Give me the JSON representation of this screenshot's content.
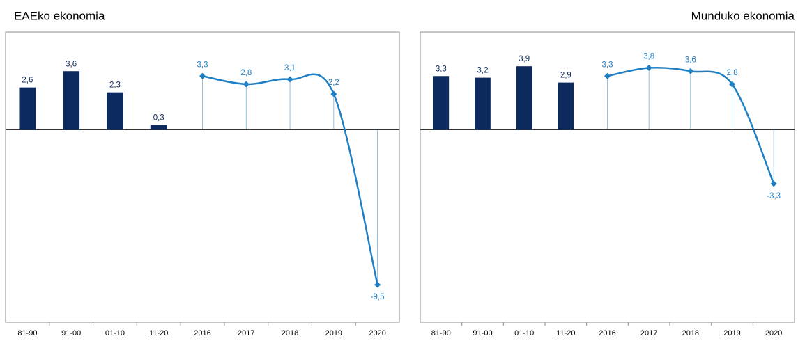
{
  "chart_data": [
    {
      "type": "combo",
      "title": "EAEko ekonomia",
      "title_align": "left",
      "categories": [
        "81-90",
        "91-00",
        "01-10",
        "11-20",
        "2016",
        "2017",
        "2018",
        "2019",
        "2020"
      ],
      "ylim": [
        -11.8,
        6
      ],
      "series": [
        {
          "type": "bar",
          "color": "#0d2a5e",
          "values": [
            2.6,
            3.6,
            2.3,
            0.3,
            null,
            null,
            null,
            null,
            null
          ],
          "value_labels": [
            "2,6",
            "3,6",
            "2,3",
            "0,3",
            null,
            null,
            null,
            null,
            null
          ]
        },
        {
          "type": "line",
          "color": "#1f7fc4",
          "values": [
            null,
            null,
            null,
            null,
            3.3,
            2.8,
            3.1,
            2.2,
            -9.5
          ],
          "value_labels": [
            null,
            null,
            null,
            null,
            "3,3",
            "2,8",
            "3,1",
            "2,2",
            "-9,5"
          ]
        }
      ]
    },
    {
      "type": "combo",
      "title": "Munduko ekonomia",
      "title_align": "right",
      "categories": [
        "81-90",
        "91-00",
        "01-10",
        "11-20",
        "2016",
        "2017",
        "2018",
        "2019",
        "2020"
      ],
      "ylim": [
        -11.8,
        6
      ],
      "series": [
        {
          "type": "bar",
          "color": "#0d2a5e",
          "values": [
            3.3,
            3.2,
            3.9,
            2.9,
            null,
            null,
            null,
            null,
            null
          ],
          "value_labels": [
            "3,3",
            "3,2",
            "3,9",
            "2,9",
            null,
            null,
            null,
            null,
            null
          ]
        },
        {
          "type": "line",
          "color": "#1f7fc4",
          "values": [
            null,
            null,
            null,
            null,
            3.3,
            3.8,
            3.6,
            2.8,
            -3.3
          ],
          "value_labels": [
            null,
            null,
            null,
            null,
            "3,3",
            "3,8",
            "3,6",
            "2,8",
            "-3,3"
          ]
        }
      ]
    }
  ]
}
